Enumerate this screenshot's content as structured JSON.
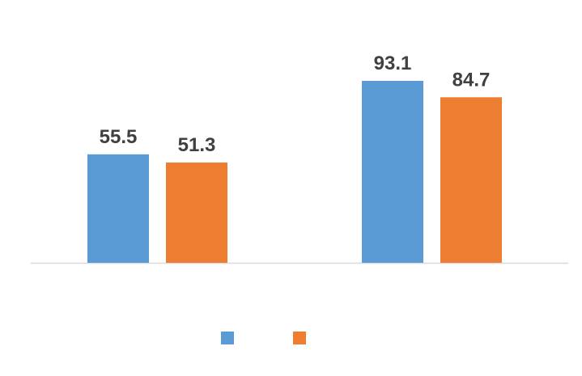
{
  "chart_data": {
    "type": "bar",
    "categories": [
      null,
      null
    ],
    "series": [
      {
        "color": "#5b9bd5",
        "values": [
          55.5,
          93.1
        ]
      },
      {
        "color": "#ed7d31",
        "values": [
          51.3,
          84.7
        ]
      }
    ],
    "ylim": [
      0,
      100
    ]
  }
}
